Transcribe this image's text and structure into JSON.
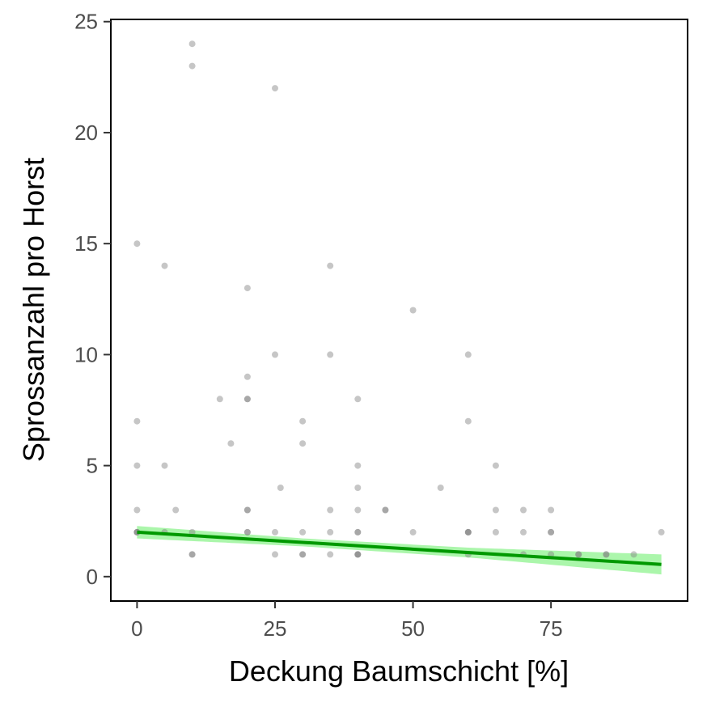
{
  "chart_data": {
    "type": "scatter",
    "xlabel": "Deckung Baumschicht [%]",
    "ylabel": "Sprossanzahl pro Horst",
    "xlim": [
      -4.75,
      99.75
    ],
    "ylim": [
      -1.1,
      25.1
    ],
    "xticks": [
      0,
      25,
      50,
      75
    ],
    "xtick_labels": [
      "0",
      "25",
      "50",
      "75"
    ],
    "yticks": [
      0,
      5,
      10,
      15,
      20,
      25
    ],
    "ytick_labels": [
      "0",
      "5",
      "10",
      "15",
      "20",
      "25"
    ],
    "grid": false,
    "points": [
      [
        0,
        2
      ],
      [
        0,
        2
      ],
      [
        0,
        2
      ],
      [
        0,
        3
      ],
      [
        0,
        5
      ],
      [
        0,
        7
      ],
      [
        0,
        15
      ],
      [
        5,
        2
      ],
      [
        5,
        5
      ],
      [
        5,
        14
      ],
      [
        7,
        3
      ],
      [
        10,
        1
      ],
      [
        10,
        1
      ],
      [
        10,
        2
      ],
      [
        10,
        23
      ],
      [
        10,
        24
      ],
      [
        15,
        8
      ],
      [
        17,
        6
      ],
      [
        20,
        2
      ],
      [
        20,
        2
      ],
      [
        20,
        3
      ],
      [
        20,
        3
      ],
      [
        20,
        8
      ],
      [
        20,
        8
      ],
      [
        20,
        9
      ],
      [
        20,
        13
      ],
      [
        25,
        1
      ],
      [
        25,
        2
      ],
      [
        25,
        10
      ],
      [
        25,
        22
      ],
      [
        26,
        4
      ],
      [
        30,
        1
      ],
      [
        30,
        1
      ],
      [
        30,
        2
      ],
      [
        30,
        6
      ],
      [
        30,
        7
      ],
      [
        35,
        1
      ],
      [
        35,
        2
      ],
      [
        35,
        3
      ],
      [
        35,
        10
      ],
      [
        35,
        14
      ],
      [
        40,
        1
      ],
      [
        40,
        1
      ],
      [
        40,
        1
      ],
      [
        40,
        2
      ],
      [
        40,
        2
      ],
      [
        40,
        3
      ],
      [
        40,
        4
      ],
      [
        40,
        5
      ],
      [
        40,
        8
      ],
      [
        45,
        3
      ],
      [
        45,
        3
      ],
      [
        50,
        2
      ],
      [
        50,
        12
      ],
      [
        55,
        4
      ],
      [
        60,
        1
      ],
      [
        60,
        2
      ],
      [
        60,
        2
      ],
      [
        60,
        2
      ],
      [
        60,
        7
      ],
      [
        60,
        10
      ],
      [
        65,
        2
      ],
      [
        65,
        3
      ],
      [
        65,
        5
      ],
      [
        70,
        1
      ],
      [
        70,
        2
      ],
      [
        70,
        3
      ],
      [
        75,
        1
      ],
      [
        75,
        2
      ],
      [
        75,
        2
      ],
      [
        75,
        3
      ],
      [
        80,
        1
      ],
      [
        80,
        1
      ],
      [
        85,
        1
      ],
      [
        85,
        1
      ],
      [
        90,
        1
      ],
      [
        95,
        2
      ]
    ],
    "trend": {
      "type": "linear",
      "x_range": [
        0,
        95
      ],
      "intercept": 2.0,
      "slope": -0.01526,
      "ci_halfwidth_at_x": [
        [
          0,
          0.28
        ],
        [
          30,
          0.18
        ],
        [
          60,
          0.22
        ],
        [
          95,
          0.45
        ]
      ]
    },
    "colors": {
      "points": "#808080",
      "trend_line": "#009900",
      "ci_band": "#a6f5a6",
      "axis": "#000000"
    }
  }
}
